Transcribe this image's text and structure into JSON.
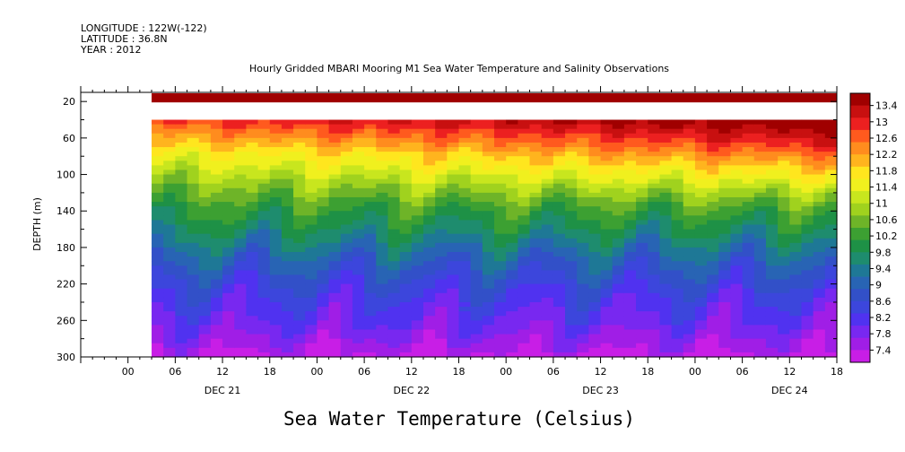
{
  "meta": {
    "longitude": "LONGITUDE : 122W(-122)",
    "latitude": "LATITUDE : 36.8N",
    "year": "YEAR : 2012"
  },
  "chart_data": {
    "type": "heatmap",
    "title": "Hourly Gridded MBARI Mooring M1 Sea Water Temperature and Salinity Observations",
    "subtitle": "Sea Water Temperature (Celsius)",
    "ylabel": "DEPTH (m)",
    "xlabel": "",
    "ylim": [
      300,
      10
    ],
    "y_ticks": [
      20,
      60,
      100,
      140,
      180,
      220,
      260,
      300
    ],
    "x_range_hours": [
      -6,
      90
    ],
    "x_tick_labels": [
      "00",
      "06",
      "12",
      "18",
      "00",
      "06",
      "12",
      "18",
      "00",
      "06",
      "12",
      "18",
      "00",
      "06",
      "12",
      "18"
    ],
    "x_tick_hours": [
      0,
      6,
      12,
      18,
      24,
      30,
      36,
      42,
      48,
      54,
      60,
      66,
      72,
      78,
      84,
      90
    ],
    "day_labels": [
      "DEC 21",
      "DEC 22",
      "DEC 23",
      "DEC 24"
    ],
    "day_label_hours": [
      12,
      36,
      60,
      84
    ],
    "data_start_hour": 3,
    "surface_band": {
      "depth_range": [
        10,
        20
      ],
      "value": 13.4
    },
    "gap_depth_range": [
      20,
      40
    ],
    "colorbar": {
      "levels": [
        13.4,
        13,
        12.6,
        12.2,
        11.8,
        11.4,
        11,
        10.6,
        10.2,
        9.8,
        9.4,
        9,
        8.6,
        8.2,
        7.8,
        7.4
      ],
      "colors": [
        "#a00000",
        "#c81010",
        "#ec2020",
        "#ff5a1e",
        "#ff8c1e",
        "#ffb41e",
        "#ffe61e",
        "#f0f01e",
        "#c8e61e",
        "#a0d21e",
        "#6eb428",
        "#3ca032",
        "#1e9146",
        "#1e8c6e",
        "#1e7896",
        "#2864b4",
        "#3250c8",
        "#3c46dc",
        "#5032f0",
        "#7828f0",
        "#a01ee6",
        "#c81ee6"
      ]
    },
    "isotherm_profile": {
      "depth_levels": [
        40,
        60,
        80,
        100,
        120,
        140,
        160,
        180,
        200,
        220,
        240,
        260,
        280,
        300
      ],
      "mean_temps": [
        12.6,
        11.9,
        11.3,
        10.9,
        10.5,
        10.1,
        9.8,
        9.4,
        9.0,
        8.7,
        8.4,
        8.2,
        7.9,
        7.6
      ]
    }
  }
}
